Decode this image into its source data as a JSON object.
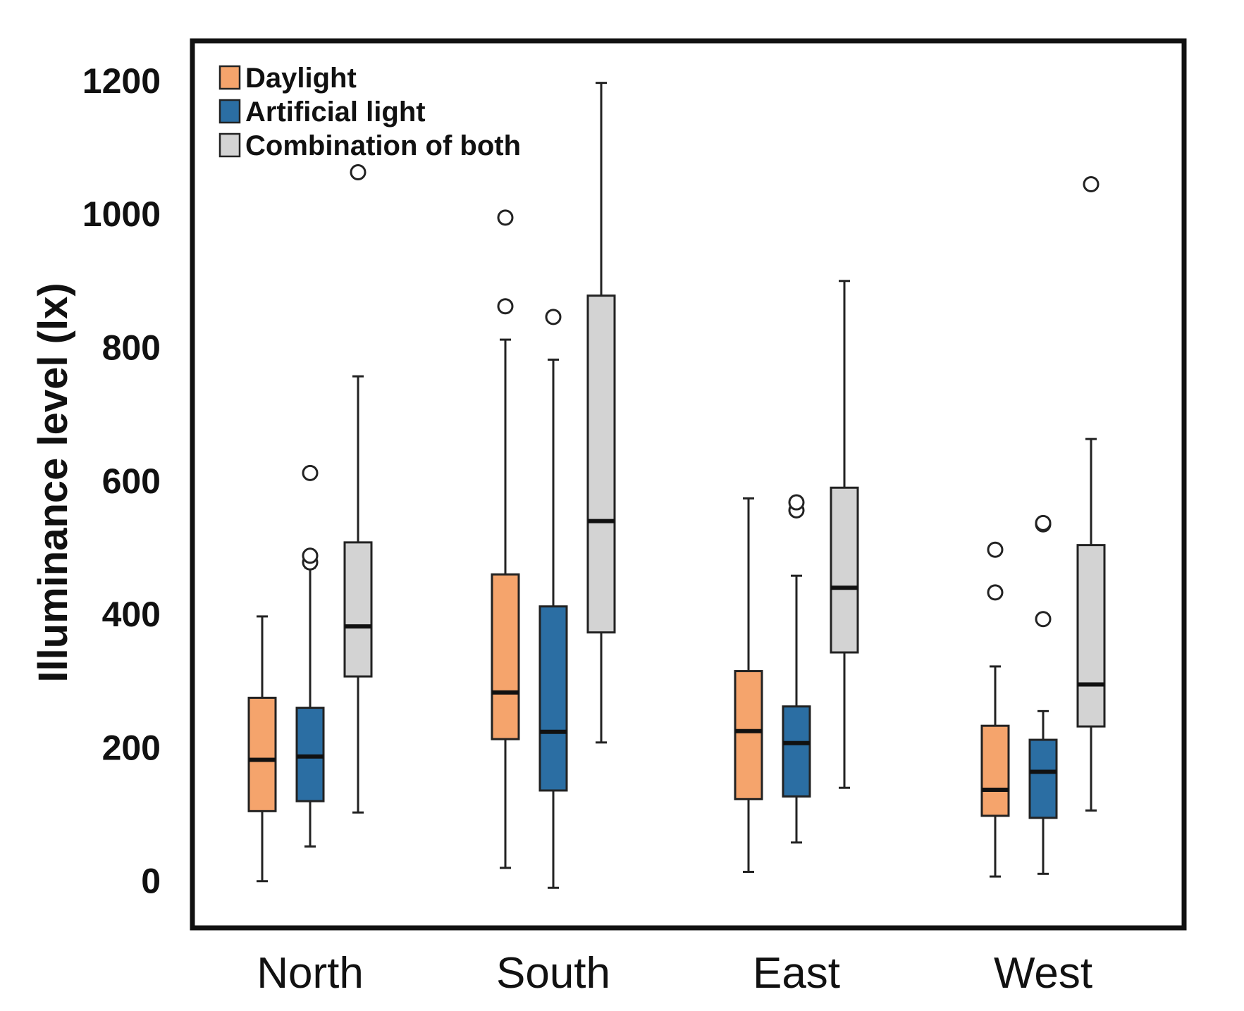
{
  "chart_data": {
    "type": "boxplot",
    "title": "",
    "xlabel": "",
    "ylabel": "Illuminance level (lx)",
    "ylim": [
      -70,
      1260
    ],
    "yticks": [
      0,
      200,
      400,
      600,
      800,
      1000,
      1200
    ],
    "categories": [
      "North",
      "South",
      "East",
      "West"
    ],
    "legend_position": "top-left",
    "series": [
      {
        "name": "Daylight",
        "color": "#F5A46C",
        "boxes": [
          {
            "category": "North",
            "whisker_low": 0,
            "q1": 105,
            "median": 182,
            "q3": 275,
            "whisker_high": 397,
            "outliers": []
          },
          {
            "category": "South",
            "whisker_low": 20,
            "q1": 213,
            "median": 283,
            "q3": 460,
            "whisker_high": 812,
            "outliers": [
              862,
              995
            ]
          },
          {
            "category": "East",
            "whisker_low": 14,
            "q1": 123,
            "median": 225,
            "q3": 315,
            "whisker_high": 574,
            "outliers": []
          },
          {
            "category": "West",
            "whisker_low": 7,
            "q1": 98,
            "median": 137,
            "q3": 233,
            "whisker_high": 322,
            "outliers": [
              433,
              497
            ]
          }
        ]
      },
      {
        "name": "Artificial light",
        "color": "#2B6EA3",
        "boxes": [
          {
            "category": "North",
            "whisker_low": 52,
            "q1": 120,
            "median": 187,
            "q3": 260,
            "whisker_high": 470,
            "outliers": [
              478,
              488,
              612
            ]
          },
          {
            "category": "South",
            "whisker_low": -10,
            "q1": 136,
            "median": 224,
            "q3": 412,
            "whisker_high": 782,
            "outliers": [
              846
            ]
          },
          {
            "category": "East",
            "whisker_low": 58,
            "q1": 127,
            "median": 207,
            "q3": 262,
            "whisker_high": 458,
            "outliers": [
              556,
              568
            ]
          },
          {
            "category": "West",
            "whisker_low": 11,
            "q1": 95,
            "median": 164,
            "q3": 212,
            "whisker_high": 255,
            "outliers": [
              393,
              535,
              537
            ]
          }
        ]
      },
      {
        "name": "Combination of both",
        "color": "#D3D3D3",
        "boxes": [
          {
            "category": "North",
            "whisker_low": 103,
            "q1": 307,
            "median": 382,
            "q3": 508,
            "whisker_high": 757,
            "outliers": [
              1063
            ]
          },
          {
            "category": "South",
            "whisker_low": 208,
            "q1": 373,
            "median": 540,
            "q3": 878,
            "whisker_high": 1197,
            "outliers": []
          },
          {
            "category": "East",
            "whisker_low": 140,
            "q1": 343,
            "median": 440,
            "q3": 590,
            "whisker_high": 900,
            "outliers": []
          },
          {
            "category": "West",
            "whisker_low": 106,
            "q1": 232,
            "median": 295,
            "q3": 504,
            "whisker_high": 663,
            "outliers": [
              1045
            ]
          }
        ]
      }
    ]
  }
}
